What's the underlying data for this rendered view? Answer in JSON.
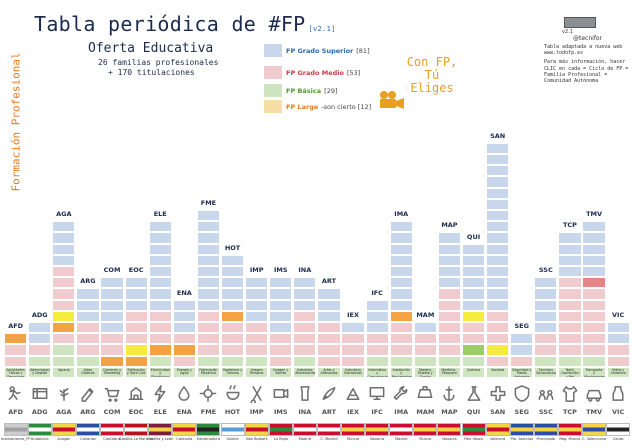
{
  "title": "Tabla periódica de #FP",
  "version": "[v2.1]",
  "subtitle": "Oferta Educativa",
  "families_line": "26 familias profesionales",
  "titulaciones_line": "+ 170 titulaciones",
  "side_label": "Formación Profesional",
  "legend": [
    {
      "label": "FP Grado Superior",
      "count": "[81]",
      "color": "#c9d7ec",
      "text_color": "#2d6aa8"
    },
    {
      "label": "FP Grado Medio",
      "count": "[53]",
      "color": "#f1cccf",
      "text_color": "#c83c46"
    },
    {
      "label": "FP Básica",
      "count": "[29]",
      "color": "#cfe5c1",
      "text_color": "#4f9a2c"
    },
    {
      "label": "FP Large",
      "count": "-son cierto [12]",
      "color": "#f7dea8",
      "text_color": "#e9781e"
    }
  ],
  "slogan": "Con FP, Tú Eliges",
  "note": {
    "version": "v2.1",
    "twitter": "@tecnifor",
    "lines": [
      "Tabla adaptada a nueva web www.todofp.es",
      "Para más información, hacer CLIC en cada = Ciclo de FP = Familia Profesional = Comunidad Autónoma"
    ]
  },
  "families": [
    {
      "code": "AFD",
      "name": "Actividades Físicas y Deportivas",
      "region": "Instalaciones_FP",
      "tiers": [
        "hi-o",
        "med",
        "med",
        "bas"
      ]
    },
    {
      "code": "ADG",
      "name": "Administración y Gestión",
      "region": "Andalucía",
      "tiers": [
        "sup",
        "sup",
        "med",
        "bas",
        "bas"
      ]
    },
    {
      "code": "AGA",
      "name": "Agraria",
      "region": "Aragón",
      "tiers": [
        "sup",
        "sup",
        "sup",
        "sup",
        "med",
        "med",
        "med",
        "med",
        "hi-y",
        "hi-o",
        "med",
        "bas",
        "bas",
        "bas"
      ]
    },
    {
      "code": "ARG",
      "name": "Artes Gráficas",
      "region": "Canarias",
      "tiers": [
        "sup",
        "sup",
        "sup",
        "med",
        "med",
        "med",
        "bas",
        "bas"
      ]
    },
    {
      "code": "COM",
      "name": "Comercio y Marketing",
      "region": "Cantabria",
      "tiers": [
        "sup",
        "sup",
        "sup",
        "sup",
        "sup",
        "med",
        "med",
        "hi-o",
        "bas"
      ]
    },
    {
      "code": "EOC",
      "name": "Edificación y Obra Civil",
      "region": "Castilla-La Mancha",
      "tiers": [
        "sup",
        "sup",
        "sup",
        "med",
        "med",
        "med",
        "hi-y",
        "hi-o",
        "bas"
      ]
    },
    {
      "code": "ELE",
      "name": "Electricidad y Electrónica",
      "region": "Castilla y León",
      "tiers": [
        "sup",
        "sup",
        "sup",
        "sup",
        "sup",
        "sup",
        "sup",
        "sup",
        "med",
        "med",
        "med",
        "hi-o",
        "bas",
        "bas"
      ]
    },
    {
      "code": "ENA",
      "name": "Energía y Agua",
      "region": "Cataluña",
      "tiers": [
        "sup",
        "sup",
        "sup",
        "med",
        "hi-o",
        "med",
        "bas"
      ]
    },
    {
      "code": "FME",
      "name": "Fabricación Mecánica",
      "region": "Extremadura",
      "tiers": [
        "sup",
        "sup",
        "sup",
        "sup",
        "sup",
        "sup",
        "sup",
        "sup",
        "sup",
        "med",
        "med",
        "med",
        "med",
        "bas",
        "bas"
      ]
    },
    {
      "code": "HOT",
      "name": "Hostelería y Turismo",
      "region": "Galicia",
      "tiers": [
        "sup",
        "sup",
        "sup",
        "sup",
        "sup",
        "hi-o",
        "med",
        "med",
        "med",
        "bas",
        "bas"
      ]
    },
    {
      "code": "IMP",
      "name": "Imagen Personal",
      "region": "Illes Balears",
      "tiers": [
        "sup",
        "sup",
        "sup",
        "sup",
        "med",
        "med",
        "med",
        "bas",
        "bas"
      ]
    },
    {
      "code": "IMS",
      "name": "Imagen y Sonido",
      "region": "La Rioja",
      "tiers": [
        "sup",
        "sup",
        "sup",
        "sup",
        "sup",
        "med",
        "med",
        "med",
        "bas"
      ]
    },
    {
      "code": "INA",
      "name": "Industrias Alimentarias",
      "region": "Madrid",
      "tiers": [
        "sup",
        "sup",
        "sup",
        "med",
        "med",
        "med",
        "med",
        "bas",
        "bas"
      ]
    },
    {
      "code": "ART",
      "name": "Artes y Artesanías",
      "region": "C. Madrid",
      "tiers": [
        "sup",
        "sup",
        "sup",
        "med",
        "med",
        "med",
        "med",
        "bas"
      ]
    },
    {
      "code": "IEX",
      "name": "Industrias Extractivas",
      "region": "Murcia",
      "tiers": [
        "sup",
        "med",
        "med",
        "med",
        "bas"
      ]
    },
    {
      "code": "IFC",
      "name": "Informática y Comunicaciones",
      "region": "Navarra",
      "tiers": [
        "sup",
        "sup",
        "sup",
        "med",
        "med",
        "bas",
        "bas"
      ]
    },
    {
      "code": "IMA",
      "name": "Instalación y Mantenimiento",
      "region": "Madrid",
      "tiers": [
        "sup",
        "sup",
        "sup",
        "sup",
        "sup",
        "sup",
        "sup",
        "sup",
        "hi-o",
        "med",
        "med",
        "med",
        "bas",
        "bas"
      ]
    },
    {
      "code": "MAM",
      "name": "Madera, Mueble y Corcho",
      "region": "Murcia",
      "tiers": [
        "sup",
        "med",
        "med",
        "bas",
        "bas"
      ]
    },
    {
      "code": "MAP",
      "name": "Marítimo - Pesquera",
      "region": "Navarra",
      "tiers": [
        "sup",
        "sup",
        "sup",
        "sup",
        "sup",
        "med",
        "med",
        "med",
        "med",
        "med",
        "med",
        "bas",
        "bas"
      ]
    },
    {
      "code": "QUI",
      "name": "Química",
      "region": "País Vasco",
      "tiers": [
        "sup",
        "sup",
        "sup",
        "sup",
        "sup",
        "sup",
        "hi-y",
        "med",
        "med",
        "hi-g",
        "bas",
        "bas"
      ]
    },
    {
      "code": "SAN",
      "name": "Sanidad",
      "region": "Valencia",
      "tiers": [
        "sup",
        "sup",
        "sup",
        "sup",
        "sup",
        "sup",
        "sup",
        "sup",
        "sup",
        "sup",
        "sup",
        "sup",
        "sup",
        "sup",
        "sup",
        "med",
        "med",
        "med",
        "hi-y",
        "med",
        "bas"
      ]
    },
    {
      "code": "SEG",
      "name": "Seguridad y Medio Ambiente",
      "region": "Pto. Asturias",
      "tiers": [
        "sup",
        "sup",
        "med",
        "bas"
      ]
    },
    {
      "code": "SSC",
      "name": "Servicios Socioculturales",
      "region": "Principado",
      "tiers": [
        "sup",
        "sup",
        "sup",
        "sup",
        "sup",
        "med",
        "med",
        "bas",
        "bas"
      ]
    },
    {
      "code": "TCP",
      "name": "Textil, Confección y Piel",
      "region": "Reg. Murcia",
      "tiers": [
        "sup",
        "sup",
        "sup",
        "sup",
        "med",
        "med",
        "med",
        "med",
        "med",
        "med",
        "med",
        "bas",
        "bas"
      ]
    },
    {
      "code": "TMV",
      "name": "Transporte y Mantenimiento de Vehículos",
      "region": "C. Valenciana",
      "tiers": [
        "sup",
        "sup",
        "sup",
        "sup",
        "sup",
        "hi-r",
        "med",
        "med",
        "med",
        "med",
        "med",
        "med",
        "bas",
        "bas"
      ]
    },
    {
      "code": "VIC",
      "name": "Vidrio y Cerámica",
      "region": "Ceuta",
      "tiers": [
        "sup",
        "sup",
        "med",
        "med",
        "bas"
      ]
    }
  ],
  "colors": {
    "sup": "#c9d7ec",
    "med": "#f1cccf",
    "bas": "#cfe5c1",
    "lo": "#f7dea8",
    "title": "#1c2b4d",
    "accent": "#e9781e"
  }
}
